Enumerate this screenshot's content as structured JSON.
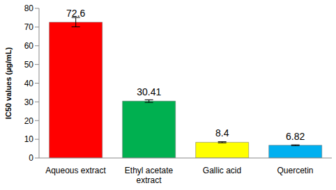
{
  "chart_data": {
    "type": "bar",
    "y_label": "IC50 values (µg/mL)",
    "categories": [
      "Aqueous extract",
      "Ethyl acetate extract",
      "Gallic acid",
      "Quercetin"
    ],
    "values": [
      72.6,
      30.41,
      8.4,
      6.82
    ],
    "errors": [
      2.5,
      0.7,
      0.3,
      0.2
    ],
    "colors": [
      "#ff0000",
      "#00b050",
      "#ffff00",
      "#00b0f0"
    ],
    "ylim": [
      0,
      80
    ],
    "yticks": [
      0,
      10,
      20,
      30,
      40,
      50,
      60,
      70,
      80
    ],
    "grid": false,
    "data_labels": true
  }
}
